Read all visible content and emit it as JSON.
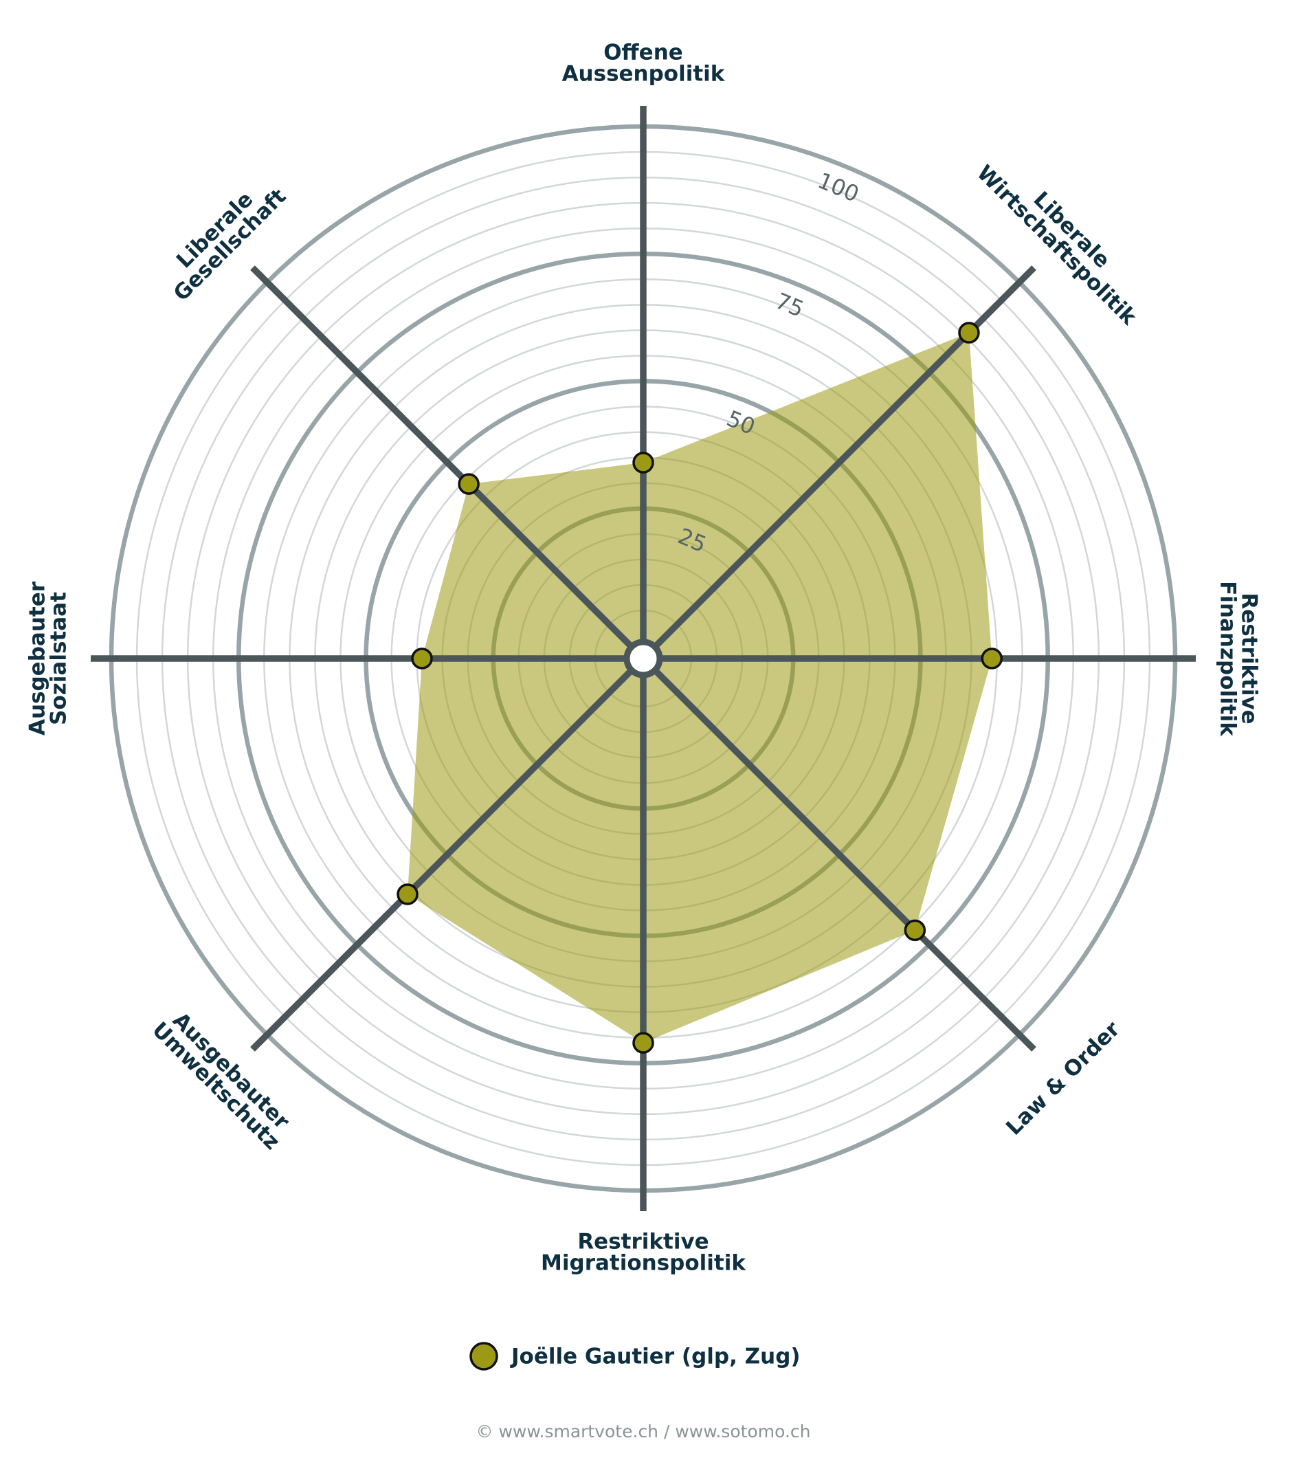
{
  "chart_data": {
    "type": "radar",
    "categories": [
      [
        "Offene",
        "Aussenpolitik"
      ],
      [
        "Liberale",
        "Wirtschaftspolitik"
      ],
      [
        "Restriktive",
        "Finanzpolitik"
      ],
      [
        "Law & Order"
      ],
      [
        "Restriktive",
        "Migrationspolitik"
      ],
      [
        "Ausgebauter",
        "Umweltschutz"
      ],
      [
        "Ausgebauter",
        "Sozialstaat"
      ],
      [
        "Liberale",
        "Gesellschaft"
      ]
    ],
    "series": [
      {
        "name": "Joëlle Gautier (glp, Zug)",
        "color": "#9c9a14",
        "values": [
          34,
          86,
          64,
          71,
          71,
          61,
          39,
          44
        ]
      }
    ],
    "rlim": [
      0,
      100
    ],
    "rticks": [
      25,
      50,
      75,
      100
    ],
    "grid": true,
    "footer": "© www.smartvote.ch / www.sotomo.ch"
  }
}
